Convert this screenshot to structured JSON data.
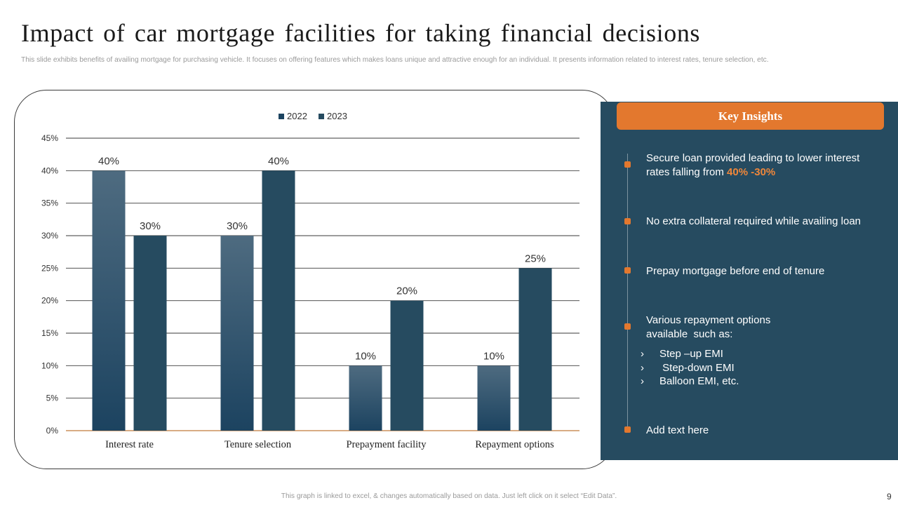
{
  "slide": {
    "title": "Impact of car mortgage facilities for taking financial decisions",
    "subtitle": "This slide exhibits benefits of availing mortgage for purchasing vehicle. It focuses on offering features which makes loans unique and attractive enough for an individual. It presents information related to interest rates, tenure selection, etc.",
    "footer_note": "This graph is linked to excel,  & changes automatically based on data. Just left click on it select “Edit Data”.",
    "page_number": "9"
  },
  "chart_data": {
    "type": "bar",
    "categories": [
      "Interest rate",
      "Tenure selection",
      "Prepayment facility",
      "Repayment options"
    ],
    "series": [
      {
        "name": "2022",
        "values": [
          40,
          30,
          10,
          10
        ],
        "labels": [
          "40%",
          "30%",
          "10%",
          "10%"
        ]
      },
      {
        "name": "2023",
        "values": [
          30,
          40,
          20,
          25
        ],
        "labels": [
          "30%",
          "40%",
          "20%",
          "25%"
        ]
      }
    ],
    "ylim": [
      0,
      45
    ],
    "y_ticks": [
      0,
      5,
      10,
      15,
      20,
      25,
      30,
      35,
      40,
      45
    ],
    "y_tick_labels": [
      "0%",
      "5%",
      "10%",
      "15%",
      "20%",
      "25%",
      "30%",
      "35%",
      "40%",
      "45%"
    ],
    "legend_position": "top-center",
    "grid": true,
    "title": "",
    "xlabel": "",
    "ylabel": "",
    "colors": {
      "series_2022_top": "#4e6b80",
      "series_2022_bottom": "#1c4360",
      "series_2023": "#264b60",
      "baseline": "#c07a3a",
      "grid": "#3a3a3a"
    }
  },
  "insights": {
    "header": "Key Insights",
    "items": [
      {
        "text": "Secure loan provided leading to lower interest rates falling from ",
        "highlight": "40% -30%"
      },
      {
        "text": "No extra collateral required while availing loan"
      },
      {
        "text": "Prepay mortgage before end of tenure"
      },
      {
        "text": "Various repayment options available  such as:",
        "sub_items": [
          "Step –up EMI",
          " Step-down EMI",
          "Balloon EMI, etc."
        ]
      },
      {
        "text": "Add text here"
      }
    ],
    "colors": {
      "panel": "#264b60",
      "accent": "#e3782e"
    }
  }
}
